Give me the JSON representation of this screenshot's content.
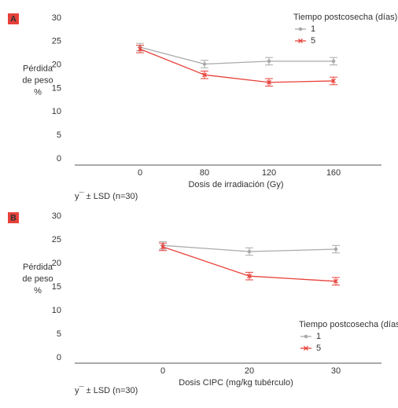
{
  "chart_data": [
    {
      "type": "line",
      "panel": "A",
      "categories": [
        null,
        "0",
        "80",
        "120",
        "160"
      ],
      "series": [
        {
          "name": "1",
          "color": "#aaaaaa",
          "values": [
            null,
            23.8,
            20.2,
            20.8,
            20.8
          ],
          "errors": [
            null,
            0.8,
            0.8,
            0.8,
            0.8
          ]
        },
        {
          "name": "5",
          "color": "#e8413a",
          "values": [
            null,
            23.4,
            17.9,
            16.3,
            16.6
          ],
          "errors": [
            null,
            0.8,
            0.8,
            0.8,
            0.8
          ]
        }
      ],
      "ylim": [
        0,
        30
      ],
      "yticks": [
        0,
        5,
        10,
        15,
        20,
        25,
        30
      ],
      "ylabel": [
        "Pérdida",
        "de peso",
        "%"
      ],
      "xlabel": "Dosis de irradiación (Gy)",
      "legend_title": "Tiempo postcosecha (días)",
      "legend": "upper right",
      "annotation": "y¯ ± LSD (n=30)"
    },
    {
      "type": "line",
      "panel": "B",
      "categories": [
        null,
        "0",
        "20",
        "30"
      ],
      "series": [
        {
          "name": "1",
          "color": "#aaaaaa",
          "values": [
            null,
            23.8,
            22.5,
            23.0
          ],
          "errors": [
            null,
            0.8,
            0.8,
            0.8
          ]
        },
        {
          "name": "5",
          "color": "#e8413a",
          "values": [
            null,
            23.5,
            17.3,
            16.2
          ],
          "errors": [
            null,
            0.8,
            0.8,
            0.8
          ]
        }
      ],
      "ylim": [
        0,
        30
      ],
      "yticks": [
        0,
        5,
        10,
        15,
        20,
        25,
        30
      ],
      "ylabel": [
        "Pérdida",
        "de peso",
        "%"
      ],
      "xlabel": "Dosis CIPC (mg/kg tubérculo)",
      "legend_title": "Tiempo postcosecha (días)",
      "legend": "center right",
      "annotation": "y¯ ± LSD (n=30)"
    }
  ]
}
